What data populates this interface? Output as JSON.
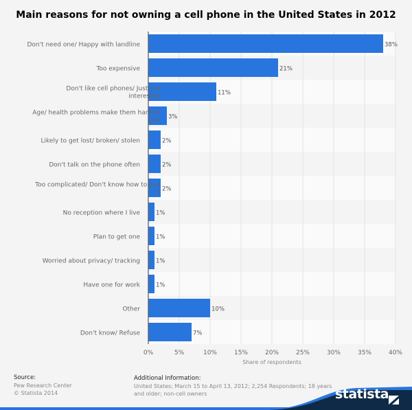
{
  "chart_data": {
    "type": "bar",
    "orientation": "horizontal",
    "title": "Main reasons for not owning a cell phone in the United States in 2012",
    "xlabel": "Share of respondents",
    "ylabel": "",
    "xlim": [
      0,
      40
    ],
    "x_ticks": [
      "0%",
      "5%",
      "10%",
      "15%",
      "20%",
      "25%",
      "30%",
      "35%",
      "40%"
    ],
    "grid": true,
    "categories": [
      "Don't need one/ Happy with landline",
      "Too expensive",
      "Don't like cell phones/ Just not interested",
      "Age/ health problems make them hard to use",
      "Likely to get lost/ broken/ stolen",
      "Don't talk on the phone often",
      "Too complicated/ Don't know how to use it",
      "No reception where I live",
      "Plan to get one",
      "Worried about privacy/ tracking",
      "Have one for work",
      "Other",
      "Don't know/ Refuse"
    ],
    "values": [
      38,
      21,
      11,
      3,
      2,
      2,
      2,
      1,
      1,
      1,
      1,
      10,
      7
    ],
    "data_labels": [
      "38%",
      "21%",
      "11%",
      "3%",
      "2%",
      "2%",
      "2%",
      "1%",
      "1%",
      "1%",
      "1%",
      "10%",
      "7%"
    ],
    "bar_color": "#2876dd"
  },
  "footer": {
    "source_label": "Source:",
    "source_lines": [
      "Pew Research Center",
      "© Statista 2014"
    ],
    "info_label": "Additional Information:",
    "info_lines": [
      "United States; March 15 to April 13, 2012; 2,254 Respondents; 18 years",
      "and older; non-cell owners"
    ],
    "brand": "statista",
    "brand_colors": {
      "dark": "#0e2a47",
      "blue": "#2876dd"
    }
  }
}
